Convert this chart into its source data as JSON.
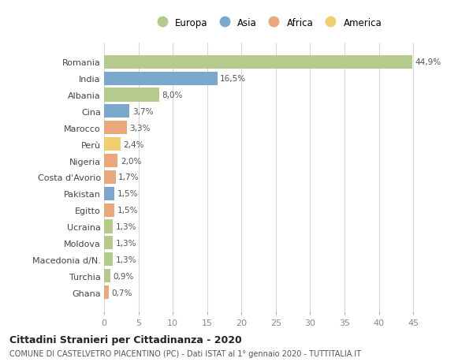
{
  "countries": [
    "Romania",
    "India",
    "Albania",
    "Cina",
    "Marocco",
    "Perù",
    "Nigeria",
    "Costa d'Avorio",
    "Pakistan",
    "Egitto",
    "Ucraina",
    "Moldova",
    "Macedonia d/N.",
    "Turchia",
    "Ghana"
  ],
  "values": [
    44.9,
    16.5,
    8.0,
    3.7,
    3.3,
    2.4,
    2.0,
    1.7,
    1.5,
    1.5,
    1.3,
    1.3,
    1.3,
    0.9,
    0.7
  ],
  "labels": [
    "44,9%",
    "16,5%",
    "8,0%",
    "3,7%",
    "3,3%",
    "2,4%",
    "2,0%",
    "1,7%",
    "1,5%",
    "1,5%",
    "1,3%",
    "1,3%",
    "1,3%",
    "0,9%",
    "0,7%"
  ],
  "continent": [
    "Europa",
    "Asia",
    "Europa",
    "Asia",
    "Africa",
    "America",
    "Africa",
    "Africa",
    "Asia",
    "Africa",
    "Europa",
    "Europa",
    "Europa",
    "Europa",
    "Africa"
  ],
  "colors": {
    "Europa": "#b5cb8b",
    "Asia": "#7ba7cc",
    "Africa": "#e8a87c",
    "America": "#f0ce72"
  },
  "legend_order": [
    "Europa",
    "Asia",
    "Africa",
    "America"
  ],
  "title": "Cittadini Stranieri per Cittadinanza - 2020",
  "subtitle": "COMUNE DI CASTELVETRO PIACENTINO (PC) - Dati ISTAT al 1° gennaio 2020 - TUTTITALIA.IT",
  "xlim": [
    0,
    47.5
  ],
  "xticks": [
    0,
    5,
    10,
    15,
    20,
    25,
    30,
    35,
    40,
    45
  ],
  "bg_color": "#ffffff",
  "grid_color": "#d8d8d8",
  "bar_height": 0.82
}
